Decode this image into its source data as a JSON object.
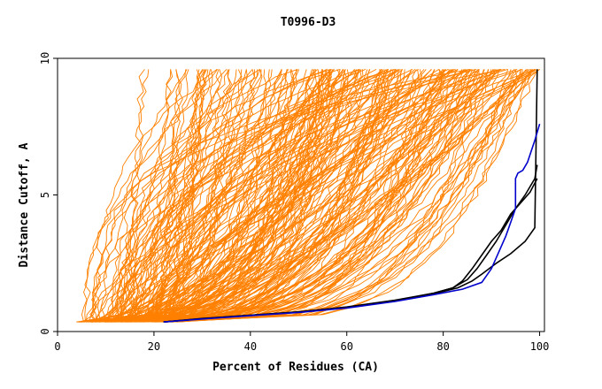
{
  "chart_data": {
    "type": "line",
    "title": "T0996-D3",
    "xlabel": "Percent of Residues (CA)",
    "ylabel": "Distance Cutoff, A",
    "xlim": [
      0,
      101
    ],
    "ylim": [
      0,
      10
    ],
    "x_ticks": [
      0,
      20,
      40,
      60,
      80,
      100
    ],
    "y_ticks": [
      0,
      5,
      10
    ],
    "grid": false,
    "legend": "none",
    "colors": {
      "background": "#ffffff",
      "axis": "#000000",
      "others": "#ff8000",
      "black_series": "#000000",
      "blue_series": "#0000cc"
    },
    "orange_background_curves": {
      "color": "#ff8000",
      "count": 230,
      "x_start_range": [
        4,
        25
      ],
      "y_start": 0.35,
      "y_end": 9.6,
      "x_end_range": [
        15,
        100
      ]
    },
    "highlighted_series": [
      {
        "color": "#000000",
        "points": [
          [
            22,
            0.35
          ],
          [
            30,
            0.48
          ],
          [
            40,
            0.6
          ],
          [
            50,
            0.72
          ],
          [
            60,
            0.9
          ],
          [
            70,
            1.15
          ],
          [
            78,
            1.4
          ],
          [
            82,
            1.6
          ],
          [
            85,
            1.9
          ],
          [
            87,
            2.3
          ],
          [
            89,
            2.8
          ],
          [
            91,
            3.3
          ],
          [
            93,
            3.9
          ],
          [
            95,
            4.5
          ],
          [
            97,
            5.0
          ],
          [
            99,
            5.6
          ],
          [
            99.5,
            6.1
          ]
        ]
      },
      {
        "color": "#000000",
        "points": [
          [
            22,
            0.35
          ],
          [
            30,
            0.47
          ],
          [
            40,
            0.59
          ],
          [
            50,
            0.71
          ],
          [
            60,
            0.88
          ],
          [
            70,
            1.12
          ],
          [
            78,
            1.38
          ],
          [
            83,
            1.6
          ],
          [
            86,
            1.85
          ],
          [
            88,
            2.1
          ],
          [
            91,
            2.5
          ],
          [
            94,
            2.85
          ],
          [
            97,
            3.3
          ],
          [
            99,
            3.8
          ],
          [
            99.5,
            9.6
          ]
        ]
      },
      {
        "color": "#000000",
        "points": [
          [
            22,
            0.35
          ],
          [
            30,
            0.47
          ],
          [
            40,
            0.6
          ],
          [
            50,
            0.72
          ],
          [
            60,
            0.89
          ],
          [
            70,
            1.13
          ],
          [
            78,
            1.4
          ],
          [
            82,
            1.6
          ],
          [
            84,
            1.85
          ],
          [
            86,
            2.3
          ],
          [
            88,
            2.8
          ],
          [
            90,
            3.3
          ],
          [
            92,
            3.7
          ],
          [
            94,
            4.3
          ],
          [
            96,
            4.7
          ],
          [
            98,
            5.1
          ],
          [
            99.5,
            5.6
          ]
        ]
      },
      {
        "color": "#0000cc",
        "points": [
          [
            22,
            0.35
          ],
          [
            30,
            0.46
          ],
          [
            40,
            0.58
          ],
          [
            50,
            0.7
          ],
          [
            60,
            0.86
          ],
          [
            70,
            1.1
          ],
          [
            78,
            1.35
          ],
          [
            84,
            1.55
          ],
          [
            88,
            1.8
          ],
          [
            90,
            2.3
          ],
          [
            92,
            3.1
          ],
          [
            93,
            3.5
          ],
          [
            94,
            4.0
          ],
          [
            95,
            4.5
          ],
          [
            95,
            5.6
          ],
          [
            95.5,
            5.8
          ],
          [
            96.5,
            5.9
          ],
          [
            97.5,
            6.2
          ],
          [
            99,
            7.0
          ],
          [
            100,
            7.6
          ]
        ]
      }
    ]
  }
}
